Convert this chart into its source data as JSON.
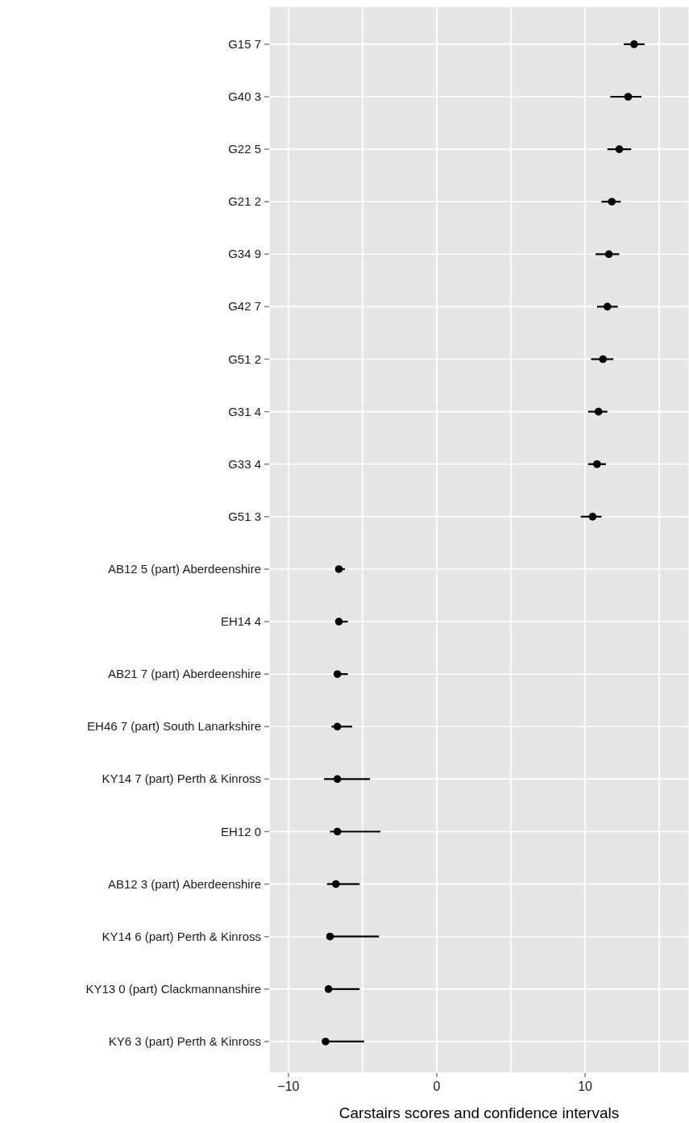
{
  "chart_data": {
    "type": "scatter",
    "orientation": "horizontal",
    "xlabel": "Carstairs scores and confidence intervals",
    "categories": [
      "G15 7",
      "G40 3",
      "G22 5",
      "G21 2",
      "G34 9",
      "G42 7",
      "G51 2",
      "G31 4",
      "G33 4",
      "G51 3",
      "AB12 5 (part) Aberdeenshire",
      "EH14 4",
      "AB21 7 (part) Aberdeenshire",
      "EH46 7 (part) South Lanarkshire",
      "KY14 7 (part) Perth & Kinross",
      "EH12 0",
      "AB12 3 (part) Aberdeenshire",
      "KY14 6 (part) Perth & Kinross",
      "KY13 0 (part) Clackmannanshire",
      "KY6 3 (part) Perth & Kinross"
    ],
    "values": [
      13.3,
      12.9,
      12.3,
      11.8,
      11.6,
      11.5,
      11.2,
      10.9,
      10.8,
      10.5,
      -6.6,
      -6.6,
      -6.7,
      -6.7,
      -6.7,
      -6.7,
      -6.8,
      -7.2,
      -7.3,
      -7.5
    ],
    "errors": [
      [
        12.6,
        14.0
      ],
      [
        11.7,
        13.8
      ],
      [
        11.5,
        13.1
      ],
      [
        11.1,
        12.4
      ],
      [
        10.7,
        12.3
      ],
      [
        10.8,
        12.2
      ],
      [
        10.4,
        11.9
      ],
      [
        10.2,
        11.5
      ],
      [
        10.2,
        11.4
      ],
      [
        9.7,
        11.1
      ],
      [
        -6.8,
        -6.2
      ],
      [
        -6.8,
        -6.0
      ],
      [
        -6.9,
        -6.0
      ],
      [
        -7.1,
        -5.7
      ],
      [
        -7.6,
        -4.5
      ],
      [
        -7.2,
        -3.8
      ],
      [
        -7.4,
        -5.2
      ],
      [
        -7.4,
        -3.9
      ],
      [
        -7.5,
        -5.2
      ],
      [
        -7.6,
        -4.9
      ]
    ],
    "color": "#000000",
    "marker": "circle",
    "grid": true,
    "xlim": [
      -11.3,
      17.0
    ],
    "xticks": [
      -10,
      {
        "value": -5,
        "label": null
      },
      0,
      {
        "value": 5,
        "label": null
      },
      10,
      {
        "value": 15,
        "label": null
      }
    ]
  }
}
